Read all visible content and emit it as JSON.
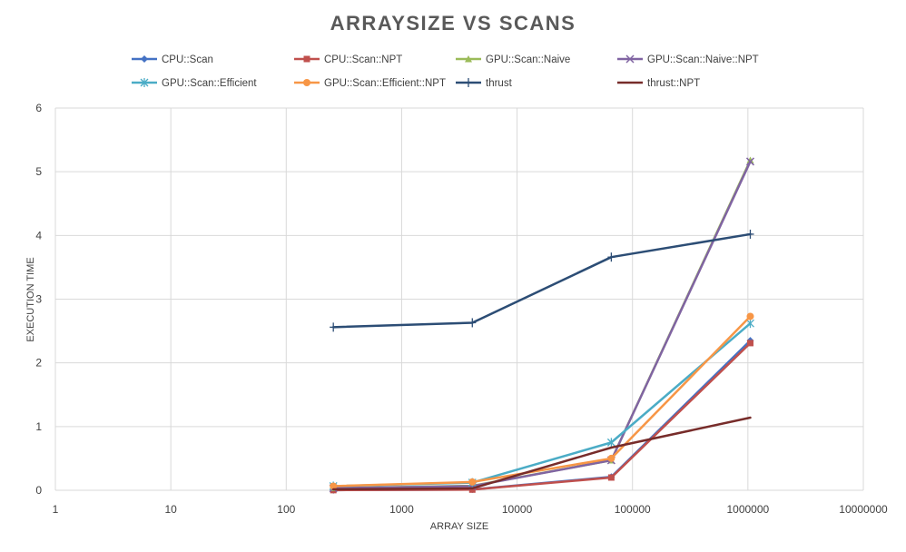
{
  "chart_data": {
    "type": "scatter",
    "title": "ARRAYSIZE VS SCANS",
    "xlabel": "ARRAY SIZE",
    "ylabel": "EXECUTION TIME",
    "x_scale": "log",
    "xlim": [
      1,
      10000000
    ],
    "ylim": [
      0,
      6
    ],
    "x_ticks": [
      "1",
      "10",
      "100",
      "1000",
      "10000",
      "100000",
      "1000000",
      "10000000"
    ],
    "y_ticks": [
      "0",
      "1",
      "2",
      "3",
      "4",
      "5",
      "6"
    ],
    "grid": true,
    "legend_position": "top",
    "x": [
      256,
      4096,
      65536,
      1048576
    ],
    "series": [
      {
        "name": "CPU::Scan",
        "values": [
          0.002,
          0.012,
          0.21,
          2.35
        ],
        "color": "#4472C4",
        "marker": "diamond"
      },
      {
        "name": "CPU::Scan::NPT",
        "values": [
          0.002,
          0.01,
          0.2,
          2.31
        ],
        "color": "#C0504D",
        "marker": "square"
      },
      {
        "name": "GPU::Scan::Naive",
        "values": [
          0.035,
          0.07,
          0.47,
          5.18
        ],
        "color": "#9BBB59",
        "marker": "triangle"
      },
      {
        "name": "GPU::Scan::Naive::NPT",
        "values": [
          0.032,
          0.065,
          0.47,
          5.16
        ],
        "color": "#8064A2",
        "marker": "x"
      },
      {
        "name": "GPU::Scan::Efficient",
        "values": [
          0.065,
          0.12,
          0.75,
          2.62
        ],
        "color": "#4BACC6",
        "marker": "asterisk"
      },
      {
        "name": "GPU::Scan::Efficient::NPT",
        "values": [
          0.065,
          0.13,
          0.5,
          2.73
        ],
        "color": "#F79646",
        "marker": "circle"
      },
      {
        "name": "thrust",
        "values": [
          2.56,
          2.63,
          3.66,
          4.02
        ],
        "color": "#2C4D75",
        "marker": "plus"
      },
      {
        "name": "thrust::NPT",
        "values": [
          0.015,
          0.03,
          0.67,
          1.14
        ],
        "color": "#772C2A",
        "marker": "none"
      }
    ]
  }
}
